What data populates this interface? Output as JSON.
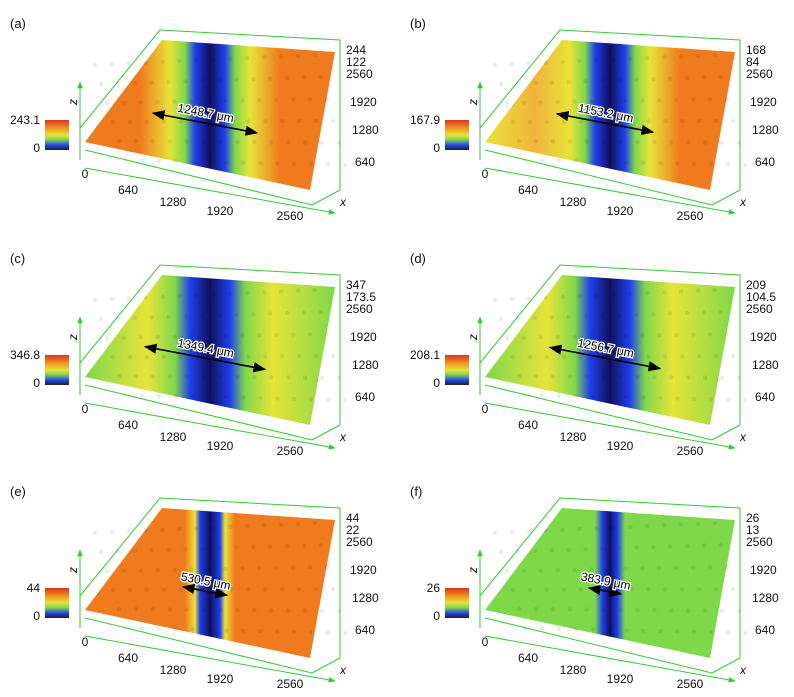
{
  "panels": [
    {
      "label": "(a)",
      "width": "1248.7 μm",
      "zmax": "244",
      "zmid": "122",
      "legend_max": "243.1",
      "legend_min": "0",
      "surface": "orange"
    },
    {
      "label": "(b)",
      "width": "1153.2 μm",
      "zmax": "168",
      "zmid": "84",
      "legend_max": "167.9",
      "legend_min": "0",
      "surface": "orange-fade"
    },
    {
      "label": "(c)",
      "width": "1349.4 μm",
      "zmax": "347",
      "zmid": "173.5",
      "legend_max": "346.8",
      "legend_min": "0",
      "surface": "green"
    },
    {
      "label": "(d)",
      "width": "1256.7 μm",
      "zmax": "209",
      "zmid": "104.5",
      "legend_max": "208.1",
      "legend_min": "0",
      "surface": "green"
    },
    {
      "label": "(e)",
      "width": "530.5 μm",
      "zmax": "44",
      "zmid": "22",
      "legend_max": "44",
      "legend_min": "0",
      "surface": "orange-dense"
    },
    {
      "label": "(f)",
      "width": "383.9 μm",
      "zmax": "26",
      "zmid": "13",
      "legend_max": "26",
      "legend_min": "0",
      "surface": "green-narrow"
    }
  ],
  "axes": {
    "x_ticks": [
      "0",
      "640",
      "1280",
      "1920",
      "2560"
    ],
    "y_ticks": [
      "2560",
      "1920",
      "1280",
      "640"
    ],
    "x_label": "x",
    "z_label": "z"
  },
  "colors": {
    "frame": "#33cc33",
    "orange": "#f07a1e",
    "yellow": "#e8e33a",
    "green": "#7fd84a",
    "blue": "#1f3ff0",
    "dark": "#10105a"
  }
}
